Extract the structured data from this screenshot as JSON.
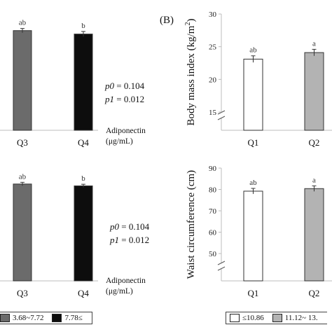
{
  "panel_label": "(B)",
  "stats": {
    "p0_label": "p0",
    "p0_value": " = 0.104",
    "p1_label": "p1",
    "p1_value": " = 0.012"
  },
  "adiponectin_label": {
    "line1": "Adiponectin",
    "line2": "(μg/mL)"
  },
  "legend_left": [
    {
      "label": "3.68~7.72",
      "color": "#6b6b6b"
    },
    {
      "label": "7.78≤",
      "color": "#0d0d0d"
    }
  ],
  "legend_right": [
    {
      "label": "≤10.86",
      "color": "#ffffff"
    },
    {
      "label": "11.12~ 13.",
      "color": "#b3b3b3"
    }
  ],
  "colors": {
    "Q1": "#ffffff",
    "Q2": "#b3b3b3",
    "Q3": "#6b6b6b",
    "Q4": "#0d0d0d"
  },
  "chart_data": [
    {
      "type": "bar",
      "panel": "left-top",
      "categories": [
        "Q3",
        "Q4"
      ],
      "values": [
        23.2,
        22.4
      ],
      "errors": [
        0.5,
        0.6
      ],
      "letters": [
        "ab",
        "b"
      ],
      "ylim": [
        0,
        30
      ],
      "ylabel": ""
    },
    {
      "type": "bar",
      "panel": "left-bottom",
      "categories": [
        "Q3",
        "Q4"
      ],
      "values": [
        79.0,
        77.5
      ],
      "errors": [
        1.4,
        1.3
      ],
      "letters": [
        "ab",
        "b"
      ],
      "ylim": [
        0,
        100
      ],
      "ylabel": ""
    },
    {
      "type": "bar",
      "panel": "right-top",
      "categories": [
        "Q1",
        "Q2"
      ],
      "values": [
        23.1,
        24.1
      ],
      "errors": [
        0.5,
        0.5
      ],
      "letters": [
        "ab",
        "a"
      ],
      "ylim": [
        0,
        30
      ],
      "yticks": [
        15,
        20,
        25,
        30
      ],
      "axis_break": true,
      "ylabel": "Body mass index (kg/m²)"
    },
    {
      "type": "bar",
      "panel": "right-bottom",
      "categories": [
        "Q1",
        "Q2"
      ],
      "values": [
        79.2,
        80.4
      ],
      "errors": [
        1.3,
        1.3
      ],
      "letters": [
        "ab",
        "a"
      ],
      "ylim": [
        0,
        90
      ],
      "yticks": [
        50,
        60,
        70,
        80,
        90
      ],
      "axis_break": true,
      "ylabel": "Waist circumference (cm)"
    }
  ]
}
